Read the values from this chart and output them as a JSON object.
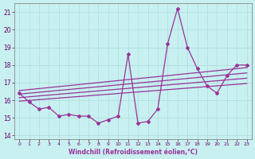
{
  "xlabel": "Windchill (Refroidissement éolien,°C)",
  "bg_color": "#c8f0f0",
  "line_color": "#993399",
  "grid_color": "#aadddd",
  "xlim": [
    -0.5,
    23.5
  ],
  "ylim": [
    13.8,
    21.5
  ],
  "xticks": [
    0,
    1,
    2,
    3,
    4,
    5,
    6,
    7,
    8,
    9,
    10,
    11,
    12,
    13,
    14,
    15,
    16,
    17,
    18,
    19,
    20,
    21,
    22,
    23
  ],
  "yticks": [
    14,
    15,
    16,
    17,
    18,
    19,
    20,
    21
  ],
  "x": [
    0,
    1,
    2,
    3,
    4,
    5,
    6,
    7,
    8,
    9,
    10,
    11,
    12,
    13,
    14,
    15,
    16,
    17,
    18,
    19,
    20,
    21,
    22,
    23
  ],
  "y_main": [
    16.4,
    15.9,
    15.5,
    15.6,
    15.1,
    15.2,
    15.1,
    15.1,
    14.7,
    14.9,
    15.1,
    18.6,
    14.7,
    14.8,
    15.5,
    19.2,
    21.2,
    19.0,
    17.8,
    16.8,
    16.4,
    17.4,
    18.0,
    18.0
  ],
  "trends": [
    [
      [
        0,
        16.55
      ],
      [
        23,
        17.85
      ]
    ],
    [
      [
        0,
        16.35
      ],
      [
        23,
        17.55
      ]
    ],
    [
      [
        0,
        16.15
      ],
      [
        23,
        17.25
      ]
    ],
    [
      [
        0,
        15.95
      ],
      [
        23,
        16.95
      ]
    ]
  ]
}
